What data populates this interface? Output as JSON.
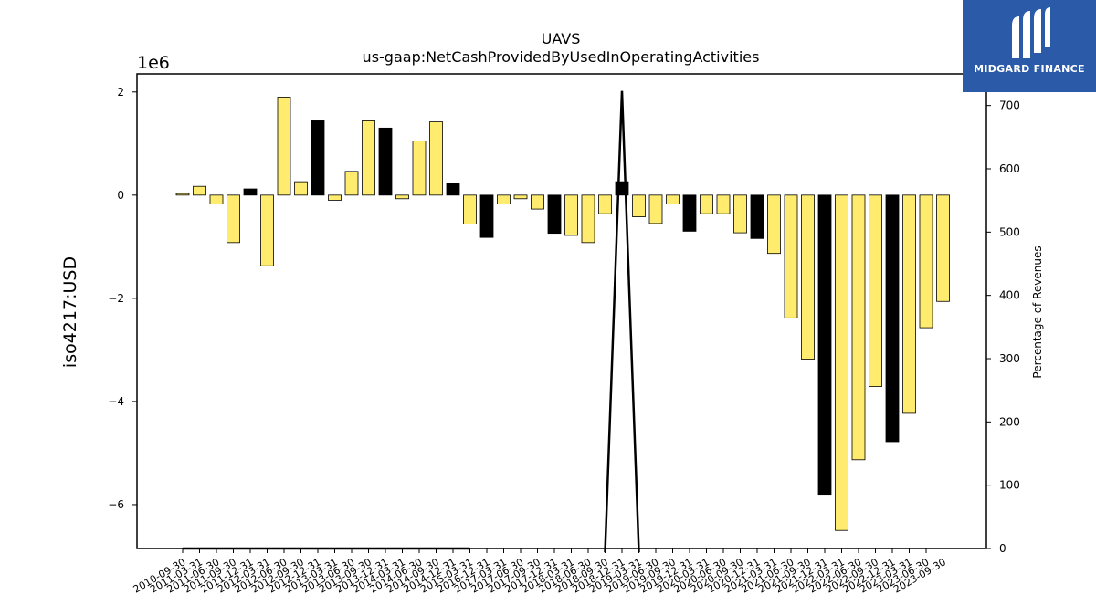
{
  "chart_data": {
    "type": "bar",
    "title": "UAVS",
    "subtitle": "us-gaap:NetCashProvidedByUsedInOperatingActivities",
    "ylabel": "iso4217:USD",
    "y2label": "Percentage of Revenues",
    "offset_label": "1e6",
    "y_scale_factor": 1000000,
    "ylim": [
      -6.85,
      2.35
    ],
    "y2lim": [
      0,
      750
    ],
    "yticks": [
      2,
      0,
      -2,
      -4,
      -6
    ],
    "y2ticks": [
      0,
      100,
      200,
      300,
      400,
      500,
      600,
      700
    ],
    "categories": [
      "2010-09-30",
      "2011-03-31",
      "2011-06-30",
      "2011-09-30",
      "2011-12-31",
      "2012-03-31",
      "2012-06-30",
      "2012-09-30",
      "2012-12-31",
      "2013-03-31",
      "2013-06-30",
      "2013-09-30",
      "2013-12-31",
      "2014-03-31",
      "2014-06-30",
      "2014-09-30",
      "2014-12-31",
      "2015-03-31",
      "2016-12-31",
      "2017-03-31",
      "2017-06-30",
      "2017-09-30",
      "2017-12-31",
      "2018-03-31",
      "2018-06-30",
      "2018-09-30",
      "2018-12-31",
      "2019-03-31",
      "2019-06-30",
      "2019-09-30",
      "2019-12-31",
      "2020-03-31",
      "2020-06-30",
      "2020-09-30",
      "2020-12-31",
      "2021-03-31",
      "2021-06-30",
      "2021-09-30",
      "2021-12-31",
      "2022-03-31",
      "2022-06-30",
      "2022-09-30",
      "2022-12-31",
      "2023-03-31",
      "2023-06-30",
      "2023-09-30"
    ],
    "series": [
      {
        "values": [
          0.03,
          0.17,
          -0.17,
          -0.92,
          0.12,
          -1.37,
          1.9,
          0.26,
          1.44,
          -0.1,
          0.46,
          1.44,
          1.3,
          -0.07,
          1.05,
          1.42,
          0.22,
          -0.56,
          -0.82,
          -0.17,
          -0.07,
          -0.27,
          -0.74,
          -0.78,
          -0.92,
          -0.36,
          0.26,
          -0.42,
          -0.55,
          -0.17,
          -0.7,
          -0.36,
          -0.36,
          -0.73,
          -0.84,
          -1.13,
          -2.38,
          -3.18,
          -5.8,
          -6.5,
          -5.13,
          -3.71,
          -4.78,
          -4.23,
          -2.57,
          -2.06
        ],
        "highlight": [
          false,
          false,
          false,
          false,
          true,
          false,
          false,
          false,
          true,
          false,
          false,
          false,
          true,
          false,
          false,
          false,
          true,
          false,
          true,
          false,
          false,
          false,
          true,
          false,
          false,
          false,
          true,
          false,
          false,
          false,
          true,
          false,
          false,
          false,
          true,
          false,
          false,
          false,
          true,
          false,
          false,
          false,
          true,
          false,
          false,
          false
        ],
        "bar_color": "#ffec6e",
        "highlight_color": "#000000"
      },
      {
        "type": "line",
        "axis": "y2",
        "values": [
          0,
          0,
          0,
          0,
          0,
          0,
          0,
          0,
          0,
          0,
          0,
          0,
          0,
          0,
          0,
          0,
          0,
          0,
          null,
          null,
          null,
          null,
          null,
          null,
          null,
          -6,
          723,
          -6,
          null,
          null,
          null,
          null,
          null,
          null,
          null,
          null,
          null,
          null,
          null,
          null,
          null,
          null,
          null,
          null,
          null,
          null
        ],
        "color": "#000000"
      }
    ]
  },
  "logo": {
    "text": "MIDGARD FINANCE",
    "color": "#2b5aa9"
  }
}
